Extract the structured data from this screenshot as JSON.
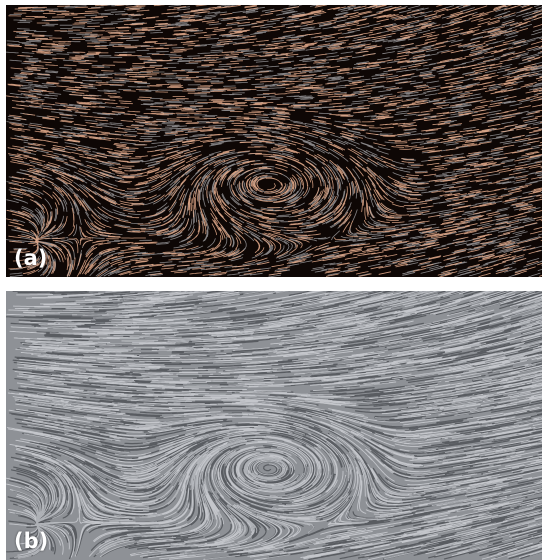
{
  "figure": {
    "panels": [
      {
        "label": "(a)",
        "style": "sparse streamlines",
        "background_color": "#0e0705",
        "stroke_color": "#e0a88a"
      },
      {
        "label": "(b)",
        "style": "line integral convolution texture",
        "background_color": "#8e9196",
        "stroke_color": "#e8eaee"
      }
    ]
  }
}
